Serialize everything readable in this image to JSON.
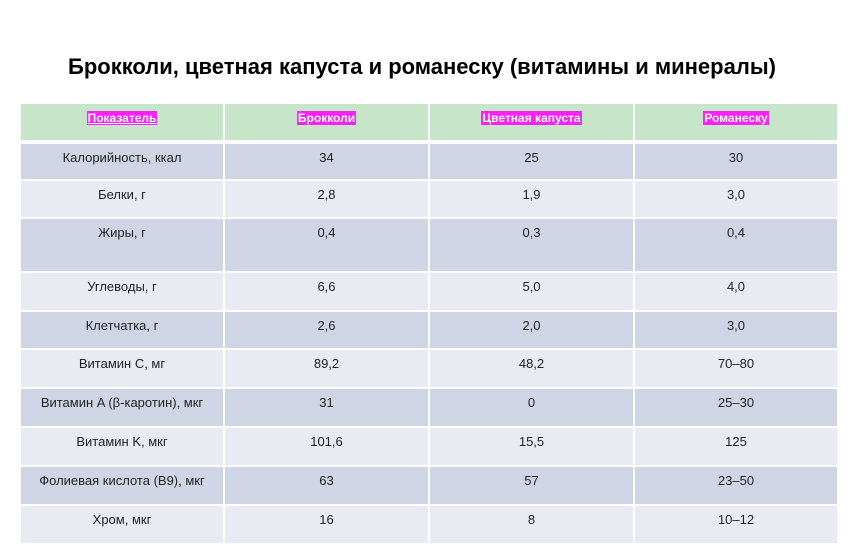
{
  "header": {
    "title": "Брокколи, цветная капуста и романеску (витамины и минералы)"
  },
  "table": {
    "columns": [
      "Показатель",
      "Брокколи",
      "Цветная капуста",
      "Романеску"
    ],
    "rows": [
      [
        "Калорийность, ккал",
        "34",
        "25",
        "30"
      ],
      [
        "Белки, г",
        "2,8",
        "1,9",
        "3,0"
      ],
      [
        "Жиры, г",
        "0,4",
        "0,3",
        "0,4"
      ],
      [
        "Углеводы, г",
        "6,6",
        "5,0",
        "4,0"
      ],
      [
        "Клетчатка, г",
        "2,6",
        "2,0",
        "3,0"
      ],
      [
        "Витамин C, мг",
        "89,2",
        "48,2",
        "70–80"
      ],
      [
        "Витамин A (β-каротин), мкг",
        "31",
        "0",
        "25–30"
      ],
      [
        "Витамин K, мкг",
        "101,6",
        "15,5",
        "125"
      ],
      [
        "Фолиевая кислота (B9), мкг",
        "63",
        "57",
        "23–50"
      ],
      [
        "Хром, мкг",
        "16",
        "8",
        "10–12"
      ]
    ]
  }
}
